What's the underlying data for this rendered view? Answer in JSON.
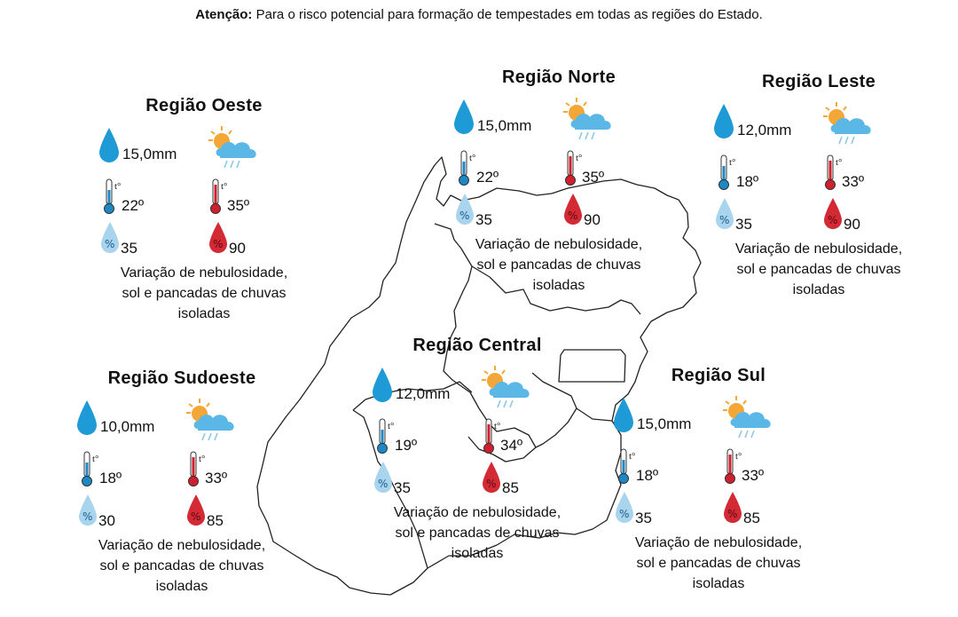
{
  "notice": {
    "label": "Atenção:",
    "text": "Para o risco potencial para formação de tempestades em todas as regiões do Estado."
  },
  "colors": {
    "rain_drop": "#1e9ad6",
    "cloud": "#5bb8e6",
    "sun": "#f4a637",
    "thermometer_min": "#1e88c7",
    "thermometer_max": "#d0202e",
    "humidity_min": "#a8d4ee",
    "humidity_max": "#d42a35",
    "map_outline": "#222222"
  },
  "icons": {
    "rain": "water-drop-icon",
    "weather": "partly-cloudy-rain-icon",
    "temp_min": "thermometer-cold-icon",
    "temp_max": "thermometer-hot-icon",
    "humidity_min": "humidity-low-icon",
    "humidity_max": "humidity-high-icon"
  },
  "regions": [
    {
      "key": "oeste",
      "name": "Região Oeste",
      "rain": "15,0mm",
      "temp_min": "22º",
      "temp_max": "35º",
      "humidity_min": "35",
      "humidity_max": "90",
      "description": "Variação de nebulosidade,\nsol e pancadas de chuvas\nisoladas"
    },
    {
      "key": "norte",
      "name": "Região Norte",
      "rain": "15,0mm",
      "temp_min": "22º",
      "temp_max": "35º",
      "humidity_min": "35",
      "humidity_max": "90",
      "description": "Variação de nebulosidade,\nsol e pancadas de chuvas\nisoladas"
    },
    {
      "key": "leste",
      "name": "Região Leste",
      "rain": "12,0mm",
      "temp_min": "18º",
      "temp_max": "33º",
      "humidity_min": "35",
      "humidity_max": "90",
      "description": "Variação de nebulosidade,\nsol e pancadas de chuvas\nisoladas"
    },
    {
      "key": "central",
      "name": "Região Central",
      "rain": "12,0mm",
      "temp_min": "19º",
      "temp_max": "34º",
      "humidity_min": "35",
      "humidity_max": "85",
      "description": "Variação de nebulosidade,\nsol e pancadas de chuvas\nisoladas"
    },
    {
      "key": "sudoeste",
      "name": "Região Sudoeste",
      "rain": "10,0mm",
      "temp_min": "18º",
      "temp_max": "33º",
      "humidity_min": "30",
      "humidity_max": "85",
      "description": "Variação de nebulosidade,\nsol e pancadas de chuvas\nisoladas"
    },
    {
      "key": "sul",
      "name": "Região Sul",
      "rain": "15,0mm",
      "temp_min": "18º",
      "temp_max": "33º",
      "humidity_min": "35",
      "humidity_max": "85",
      "description": "Variação de nebulosidade,\nsol e pancadas de chuvas\nisoladas"
    }
  ]
}
